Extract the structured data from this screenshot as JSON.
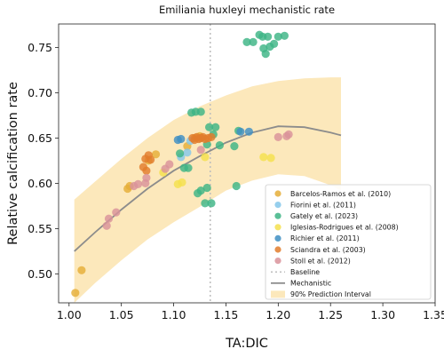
{
  "chart_data": {
    "type": "scatter",
    "title": "Emiliania huxleyi mechanistic rate",
    "xlabel": "TA:DIC",
    "ylabel": "Relative calcification rate",
    "xlim": [
      0.99,
      1.35
    ],
    "ylim": [
      0.468,
      0.776
    ],
    "xticks": [
      "1.00",
      "1.05",
      "1.10",
      "1.15",
      "1.20",
      "1.25",
      "1.30",
      "1.35"
    ],
    "yticks": [
      "0.50",
      "0.55",
      "0.60",
      "0.65",
      "0.70",
      "0.75"
    ],
    "grid": false,
    "legend_position": "lower-right",
    "baseline_x": 1.135,
    "mechanistic_curve": {
      "name": "Mechanistic",
      "color": "#8c8c8c",
      "x": [
        1.005,
        1.025,
        1.05,
        1.075,
        1.1,
        1.125,
        1.15,
        1.175,
        1.2,
        1.225,
        1.25,
        1.26
      ],
      "y": [
        0.525,
        0.546,
        0.571,
        0.594,
        0.614,
        0.63,
        0.645,
        0.656,
        0.663,
        0.662,
        0.656,
        0.653
      ]
    },
    "prediction_interval": {
      "name": "90% Prediction Interval",
      "color": "#fce8bb",
      "x": [
        1.005,
        1.025,
        1.05,
        1.075,
        1.1,
        1.125,
        1.15,
        1.175,
        1.2,
        1.225,
        1.25,
        1.26
      ],
      "upper": [
        0.582,
        0.602,
        0.627,
        0.65,
        0.67,
        0.685,
        0.697,
        0.707,
        0.713,
        0.716,
        0.717,
        0.717
      ],
      "lower": [
        0.468,
        0.49,
        0.515,
        0.538,
        0.557,
        0.574,
        0.592,
        0.603,
        0.61,
        0.608,
        0.598,
        0.592
      ]
    },
    "series": [
      {
        "name": "Barcelos-Ramos et al. (2010)",
        "color": "#e5ae38",
        "points": [
          [
            1.006,
            0.479
          ],
          [
            1.012,
            0.504
          ],
          [
            1.056,
            0.594
          ],
          [
            1.058,
            0.597
          ],
          [
            1.076,
            0.625
          ],
          [
            1.083,
            0.632
          ],
          [
            1.113,
            0.641
          ],
          [
            1.12,
            0.65
          ],
          [
            1.125,
            0.652
          ]
        ]
      },
      {
        "name": "Fiorini et al. (2011)",
        "color": "#84c7ea",
        "points": [
          [
            1.107,
            0.629
          ],
          [
            1.113,
            0.634
          ],
          [
            1.116,
            0.647
          ]
        ]
      },
      {
        "name": "Gately et al. (2023)",
        "color": "#3db485",
        "points": [
          [
            1.106,
            0.633
          ],
          [
            1.11,
            0.617
          ],
          [
            1.114,
            0.617
          ],
          [
            1.117,
            0.678
          ],
          [
            1.121,
            0.679
          ],
          [
            1.123,
            0.589
          ],
          [
            1.126,
            0.592
          ],
          [
            1.126,
            0.679
          ],
          [
            1.13,
            0.578
          ],
          [
            1.132,
            0.595
          ],
          [
            1.132,
            0.643
          ],
          [
            1.134,
            0.662
          ],
          [
            1.136,
            0.578
          ],
          [
            1.138,
            0.654
          ],
          [
            1.14,
            0.662
          ],
          [
            1.144,
            0.642
          ],
          [
            1.158,
            0.641
          ],
          [
            1.16,
            0.597
          ],
          [
            1.162,
            0.658
          ],
          [
            1.17,
            0.756
          ],
          [
            1.176,
            0.756
          ],
          [
            1.182,
            0.764
          ],
          [
            1.185,
            0.762
          ],
          [
            1.186,
            0.749
          ],
          [
            1.188,
            0.743
          ],
          [
            1.19,
            0.762
          ],
          [
            1.192,
            0.751
          ],
          [
            1.196,
            0.754
          ],
          [
            1.2,
            0.762
          ],
          [
            1.206,
            0.763
          ]
        ]
      },
      {
        "name": "Iglesias-Rodrigues et al. (2008)",
        "color": "#f4e04d",
        "points": [
          [
            1.09,
            0.612
          ],
          [
            1.104,
            0.599
          ],
          [
            1.108,
            0.601
          ],
          [
            1.13,
            0.629
          ],
          [
            1.186,
            0.629
          ],
          [
            1.193,
            0.628
          ]
        ]
      },
      {
        "name": "Richier et al. (2011)",
        "color": "#3f8fc3",
        "points": [
          [
            1.104,
            0.648
          ],
          [
            1.107,
            0.649
          ],
          [
            1.164,
            0.657
          ],
          [
            1.172,
            0.657
          ]
        ]
      },
      {
        "name": "Sciandra et al. (2003)",
        "color": "#e27d2c",
        "points": [
          [
            1.071,
            0.618
          ],
          [
            1.073,
            0.627
          ],
          [
            1.074,
            0.614
          ],
          [
            1.076,
            0.631
          ],
          [
            1.078,
            0.626
          ],
          [
            1.118,
            0.65
          ],
          [
            1.12,
            0.648
          ],
          [
            1.122,
            0.651
          ],
          [
            1.124,
            0.649
          ],
          [
            1.126,
            0.65
          ],
          [
            1.128,
            0.651
          ],
          [
            1.13,
            0.649
          ],
          [
            1.133,
            0.65
          ],
          [
            1.136,
            0.651
          ]
        ]
      },
      {
        "name": "Stoll et al. (2012)",
        "color": "#d9929a",
        "points": [
          [
            1.036,
            0.553
          ],
          [
            1.038,
            0.561
          ],
          [
            1.045,
            0.568
          ],
          [
            1.062,
            0.597
          ],
          [
            1.066,
            0.599
          ],
          [
            1.073,
            0.6
          ],
          [
            1.074,
            0.606
          ],
          [
            1.092,
            0.616
          ],
          [
            1.096,
            0.621
          ],
          [
            1.126,
            0.637
          ],
          [
            1.2,
            0.651
          ],
          [
            1.208,
            0.652
          ],
          [
            1.21,
            0.654
          ]
        ]
      }
    ],
    "legend": [
      "Barcelos-Ramos et al. (2010)",
      "Fiorini et al. (2011)",
      "Gately et al. (2023)",
      "Iglesias-Rodrigues et al. (2008)",
      "Richier et al. (2011)",
      "Sciandra et al. (2003)",
      "Stoll et al. (2012)",
      "Baseline",
      "Mechanistic",
      "90% Prediction Interval"
    ]
  }
}
